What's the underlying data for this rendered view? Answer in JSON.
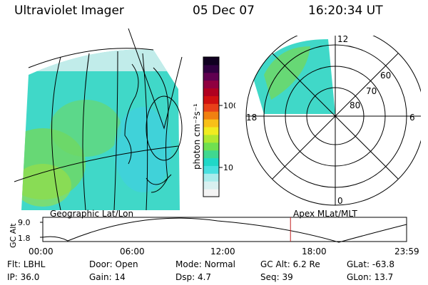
{
  "header": {
    "instrument": "Ultraviolet Imager",
    "date": "05 Dec 07",
    "time": "16:20:34 UT"
  },
  "colorbar": {
    "unit_label": "photon cm⁻²s⁻¹",
    "ticks": [
      {
        "label": "100",
        "value": 100
      },
      {
        "label": "10",
        "value": 10
      }
    ],
    "colors": [
      "#f4f4f4",
      "#d8f0f0",
      "#a8ecec",
      "#48e0e0",
      "#20d8c8",
      "#40d890",
      "#70e050",
      "#b0e830",
      "#f0ec20",
      "#f8c018",
      "#f08010",
      "#e84018",
      "#d01010",
      "#b00020",
      "#900040",
      "#600050",
      "#300040",
      "#100020"
    ]
  },
  "geo_map": {
    "caption": "Geographic Lat/Lon"
  },
  "polar_plot": {
    "caption": "Apex MLat/MLT",
    "mlt_labels": [
      "12",
      "18",
      "6",
      "0"
    ],
    "mlat_labels": [
      "60",
      "70",
      "80"
    ]
  },
  "altitude_plot": {
    "ylabel": "GC Alt",
    "yticks": [
      "9.0",
      "1.8"
    ],
    "xticks": [
      "00:00",
      "06:00",
      "12:00",
      "18:00",
      "23:59"
    ],
    "current_time_hours": 16.34
  },
  "status": {
    "filter": {
      "label": "Flt:",
      "value": "LBHL"
    },
    "ip": {
      "label": "IP:",
      "value": "36.0"
    },
    "door": {
      "label": "Door:",
      "value": "Open"
    },
    "gain": {
      "label": "Gain:",
      "value": "14"
    },
    "mode": {
      "label": "Mode:",
      "value": "Normal"
    },
    "dsp": {
      "label": "Dsp:",
      "value": "4.7"
    },
    "gc_alt": {
      "label": "GC Alt:",
      "value": "6.2 Re"
    },
    "seq": {
      "label": "Seq:",
      "value": "39"
    },
    "glat": {
      "label": "GLat:",
      "value": "-63.8"
    },
    "glon": {
      "label": "GLon:",
      "value": "13.7"
    }
  },
  "colors": {
    "cyan": "#40d8d8",
    "green": "#60d870",
    "marker": "#c02020"
  }
}
